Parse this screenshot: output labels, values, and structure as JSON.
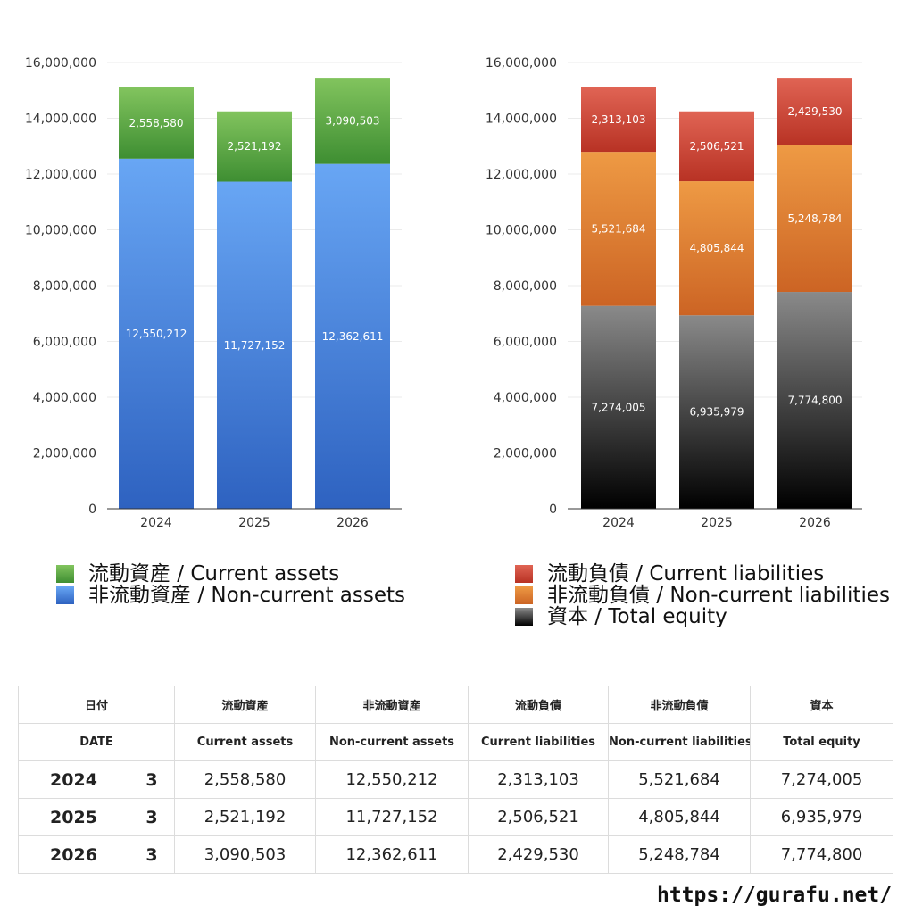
{
  "colors": {
    "current_assets": [
      "#82c45e",
      "#3e8e32"
    ],
    "noncurrent_assets": [
      "#68a6f4",
      "#2e62c0"
    ],
    "current_liabilities": [
      "#e06454",
      "#b83224"
    ],
    "noncurrent_liabilities": [
      "#ee9a44",
      "#cc6424"
    ],
    "equity": [
      "#8a8a8a",
      "#000000"
    ]
  },
  "chart_data": [
    {
      "type": "bar",
      "stacked": true,
      "categories": [
        "2024",
        "2025",
        "2026"
      ],
      "ylim": [
        0,
        16000000
      ],
      "yticks": [
        "0",
        "2,000,000",
        "4,000,000",
        "6,000,000",
        "8,000,000",
        "10,000,000",
        "12,000,000",
        "14,000,000",
        "16,000,000"
      ],
      "grid": true,
      "series": [
        {
          "name": "非流動資産 / Non-current assets",
          "key": "noncurrent_assets",
          "values": [
            12550212,
            11727152,
            12362611
          ],
          "labels": [
            "12,550,212",
            "11,727,152",
            "12,362,611"
          ]
        },
        {
          "name": "流動資産 / Current assets",
          "key": "current_assets",
          "values": [
            2558580,
            2521192,
            3090503
          ],
          "labels": [
            "2,558,580",
            "2,521,192",
            "3,090,503"
          ]
        }
      ]
    },
    {
      "type": "bar",
      "stacked": true,
      "categories": [
        "2024",
        "2025",
        "2026"
      ],
      "ylim": [
        0,
        16000000
      ],
      "yticks": [
        "0",
        "2,000,000",
        "4,000,000",
        "6,000,000",
        "8,000,000",
        "10,000,000",
        "12,000,000",
        "14,000,000",
        "16,000,000"
      ],
      "grid": true,
      "series": [
        {
          "name": "資本 / Total equity",
          "key": "equity",
          "values": [
            7274005,
            6935979,
            7774800
          ],
          "labels": [
            "7,274,005",
            "6,935,979",
            "7,774,800"
          ]
        },
        {
          "name": "非流動負債 / Non-current liabilities",
          "key": "noncurrent_liabilities",
          "values": [
            5521684,
            4805844,
            5248784
          ],
          "labels": [
            "5,521,684",
            "4,805,844",
            "5,248,784"
          ]
        },
        {
          "name": "流動負債 / Current liabilities",
          "key": "current_liabilities",
          "values": [
            2313103,
            2506521,
            2429530
          ],
          "labels": [
            "2,313,103",
            "2,506,521",
            "2,429,530"
          ]
        }
      ]
    }
  ],
  "legend_left": [
    {
      "label": "流動資産 / Current assets",
      "key": "current_assets"
    },
    {
      "label": "非流動資産 / Non-current assets",
      "key": "noncurrent_assets"
    }
  ],
  "legend_right": [
    {
      "label": "流動負債 / Current liabilities",
      "key": "current_liabilities"
    },
    {
      "label": "非流動負債 / Non-current liabilities",
      "key": "noncurrent_liabilities"
    },
    {
      "label": "資本 / Total equity",
      "key": "equity"
    }
  ],
  "table": {
    "header_jp": [
      "日付",
      "",
      "流動資産",
      "非流動資産",
      "流動負債",
      "非流動負債",
      "資本"
    ],
    "header_en": [
      "DATE",
      "",
      "Current assets",
      "Non-current assets",
      "Current liabilities",
      "Non-current liabilities",
      "Total equity"
    ],
    "rows": [
      [
        "2024",
        "3",
        "2,558,580",
        "12,550,212",
        "2,313,103",
        "5,521,684",
        "7,274,005"
      ],
      [
        "2025",
        "3",
        "2,521,192",
        "11,727,152",
        "2,506,521",
        "4,805,844",
        "6,935,979"
      ],
      [
        "2026",
        "3",
        "3,090,503",
        "12,362,611",
        "2,429,530",
        "5,248,784",
        "7,774,800"
      ]
    ]
  },
  "footer": {
    "url": "https://gurafu.net/"
  }
}
